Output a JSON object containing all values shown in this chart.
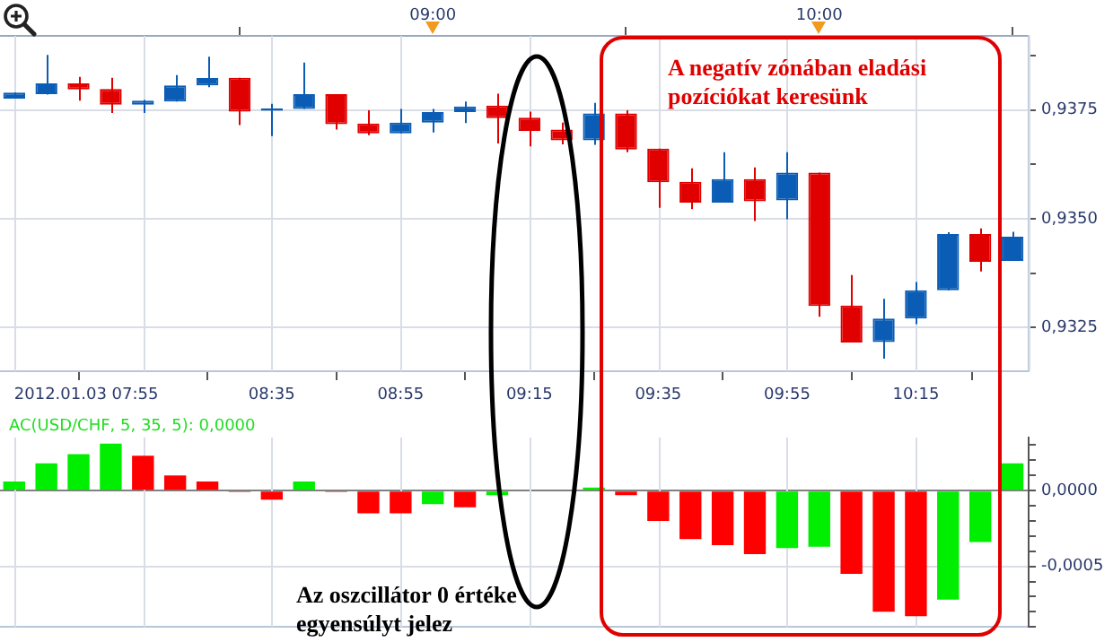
{
  "chart_data": [
    {
      "type": "candlestick",
      "x": [
        7.9167,
        8,
        8.0833,
        8.1667,
        8.25,
        8.3333,
        8.4167,
        8.5,
        8.5833,
        8.6667,
        8.75,
        8.8333,
        8.9167,
        9,
        9.0833,
        9.1667,
        9.25,
        9.3333,
        9.4167,
        9.5,
        9.5833,
        9.6667,
        9.75,
        9.8333,
        9.9167,
        10,
        10.0833,
        10.1667,
        10.25,
        10.3333,
        10.4167,
        10.5
      ],
      "ohlc": [
        [
          0.93776,
          0.9379,
          0.93776,
          0.9379
        ],
        [
          0.93786,
          0.93876,
          0.93785,
          0.93811
        ],
        [
          0.93811,
          0.93826,
          0.93771,
          0.93797
        ],
        [
          0.93798,
          0.93824,
          0.93743,
          0.93762
        ],
        [
          0.93762,
          0.93773,
          0.93743,
          0.93771
        ],
        [
          0.93769,
          0.9383,
          0.93769,
          0.93806
        ],
        [
          0.93806,
          0.93872,
          0.93802,
          0.93823
        ],
        [
          0.93824,
          0.93824,
          0.93715,
          0.93746
        ],
        [
          0.93748,
          0.93764,
          0.9369,
          0.93753
        ],
        [
          0.93752,
          0.93859,
          0.93752,
          0.93786
        ],
        [
          0.93786,
          0.93786,
          0.93705,
          0.93717
        ],
        [
          0.93719,
          0.93749,
          0.93692,
          0.93696
        ],
        [
          0.93696,
          0.93752,
          0.93696,
          0.93721
        ],
        [
          0.93721,
          0.93752,
          0.93698,
          0.93745
        ],
        [
          0.93745,
          0.93769,
          0.9372,
          0.93758
        ],
        [
          0.9376,
          0.93787,
          0.93673,
          0.93731
        ],
        [
          0.93732,
          0.93746,
          0.93666,
          0.93702
        ],
        [
          0.93705,
          0.93721,
          0.93671,
          0.9368
        ],
        [
          0.9368,
          0.93766,
          0.9367,
          0.93742
        ],
        [
          0.93742,
          0.93749,
          0.93653,
          0.93659
        ],
        [
          0.93661,
          0.93661,
          0.93525,
          0.93584
        ],
        [
          0.93585,
          0.93616,
          0.93522,
          0.93537
        ],
        [
          0.93537,
          0.93653,
          0.93537,
          0.93591
        ],
        [
          0.93591,
          0.93618,
          0.93495,
          0.9354
        ],
        [
          0.93542,
          0.93653,
          0.93499,
          0.93606
        ],
        [
          0.93606,
          0.93606,
          0.93275,
          0.933
        ],
        [
          0.93301,
          0.93371,
          0.93216,
          0.93216
        ],
        [
          0.93217,
          0.93316,
          0.93179,
          0.93271
        ],
        [
          0.93271,
          0.93355,
          0.93258,
          0.93336
        ],
        [
          0.93336,
          0.93469,
          0.93336,
          0.93465
        ],
        [
          0.93465,
          0.93478,
          0.93379,
          0.93401
        ],
        [
          0.93403,
          0.9347,
          0.93403,
          0.93459
        ]
      ],
      "colors": [
        "#0b5cb5",
        "#0b5cb5",
        "#e00000",
        "#e00000",
        "#0b5cb5",
        "#0b5cb5",
        "#0b5cb5",
        "#e00000",
        "#0b5cb5",
        "#0b5cb5",
        "#e00000",
        "#e00000",
        "#0b5cb5",
        "#0b5cb5",
        "#0b5cb5",
        "#e00000",
        "#e00000",
        "#e00000",
        "#0b5cb5",
        "#e00000",
        "#e00000",
        "#e00000",
        "#0b5cb5",
        "#e00000",
        "#0b5cb5",
        "#e00000",
        "#e00000",
        "#0b5cb5",
        "#0b5cb5",
        "#0b5cb5",
        "#e00000",
        "#0b5cb5"
      ],
      "xlim": [
        7.88,
        10.5417
      ],
      "xticks": [
        {
          "value": 7.9167,
          "label": "2012.01.03 07:55"
        },
        {
          "value": 8.25,
          "label": null
        },
        {
          "value": 8.5833,
          "label": "08:35"
        },
        {
          "value": 8.9167,
          "label": "08:55"
        },
        {
          "value": 9.25,
          "label": "09:15"
        },
        {
          "value": 9.5833,
          "label": "09:35"
        },
        {
          "value": 9.9167,
          "label": "09:55"
        },
        {
          "value": 10.25,
          "label": "10:15"
        },
        {
          "value": 10.5417,
          "label": null
        }
      ],
      "x2lim": [
        7.88,
        10.5417
      ],
      "x2ticks": [
        {
          "value": 9,
          "label": "09:00"
        },
        {
          "value": 10,
          "label": "10:00"
        }
      ],
      "ylim": [
        0.9315,
        0.9392
      ],
      "yticks": [
        {
          "value": 0.9325,
          "label": "0,9325"
        },
        {
          "value": 0.93375,
          "label": null
        },
        {
          "value": 0.935,
          "label": "0,9350"
        },
        {
          "value": 0.93625,
          "label": null
        },
        {
          "value": 0.9375,
          "label": "0,9375"
        },
        {
          "value": 0.93875,
          "label": null
        }
      ],
      "grid": true,
      "annotations": [
        "A negatív zónában eladási pozíciókat keresünk"
      ]
    },
    {
      "type": "bar",
      "title": "AC(USD/CHF, 5, 35, 5): 0,0000",
      "x": [
        7.9167,
        8,
        8.0833,
        8.1667,
        8.25,
        8.3333,
        8.4167,
        8.5,
        8.5833,
        8.6667,
        8.75,
        8.8333,
        8.9167,
        9,
        9.0833,
        9.1667,
        9.25,
        9.3333,
        9.4167,
        9.5,
        9.5833,
        9.6667,
        9.75,
        9.8333,
        9.9167,
        10,
        10.0833,
        10.1667,
        10.25,
        10.3333,
        10.4167,
        10.5
      ],
      "values": [
        6e-05,
        0.00018,
        0.00024,
        0.00031,
        0.00023,
        0.0001,
        6e-05,
        -1e-05,
        -6e-05,
        6e-05,
        -1e-05,
        -0.00015,
        -0.00015,
        -9e-05,
        -0.00011,
        -3e-05,
        null,
        null,
        2e-05,
        -3e-05,
        -0.0002,
        -0.00032,
        -0.00036,
        -0.00042,
        -0.00038,
        -0.00037,
        -0.00055,
        -0.0008,
        -0.00083,
        -0.00072,
        -0.00034,
        0.00018
      ],
      "colors": [
        "#00ee00",
        "#00ee00",
        "#00ee00",
        "#00ee00",
        "#ff0000",
        "#ff0000",
        "#ff0000",
        "#ff0000",
        "#ff0000",
        "#00ee00",
        "#ff0000",
        "#ff0000",
        "#ff0000",
        "#00ee00",
        "#ff0000",
        "#00ee00",
        "#00ee00",
        "#00ee00",
        "#00ee00",
        "#ff0000",
        "#ff0000",
        "#ff0000",
        "#ff0000",
        "#ff0000",
        "#00ee00",
        "#00ee00",
        "#ff0000",
        "#ff0000",
        "#ff0000",
        "#00ee00",
        "#00ee00",
        "#00ee00"
      ],
      "xlim": [
        7.88,
        10.5417
      ],
      "xticks": [
        7.9167,
        8.25,
        8.5833,
        8.9167,
        9.25,
        9.5833,
        9.9167,
        10.25
      ],
      "ylim": [
        -0.0009,
        0.00035
      ],
      "yticks": [
        {
          "value": -0.0009,
          "label": null
        },
        {
          "value": -0.0008,
          "label": null
        },
        {
          "value": -0.0007,
          "label": null
        },
        {
          "value": -0.0006,
          "label": null
        },
        {
          "value": -0.0005,
          "label": "-0,0005"
        },
        {
          "value": -0.0004,
          "label": null
        },
        {
          "value": -0.0003,
          "label": null
        },
        {
          "value": -0.0002,
          "label": null
        },
        {
          "value": -0.0001,
          "label": null
        },
        {
          "value": 0,
          "label": "0,0000"
        },
        {
          "value": 0.0001,
          "label": null
        },
        {
          "value": 0.0002,
          "label": null
        },
        {
          "value": 0.0003,
          "label": null
        }
      ],
      "grid": true,
      "tick_labels": "y",
      "annotations": [
        "Az oszcillátor 0 értéke egyensúlyt jelez"
      ]
    }
  ]
}
